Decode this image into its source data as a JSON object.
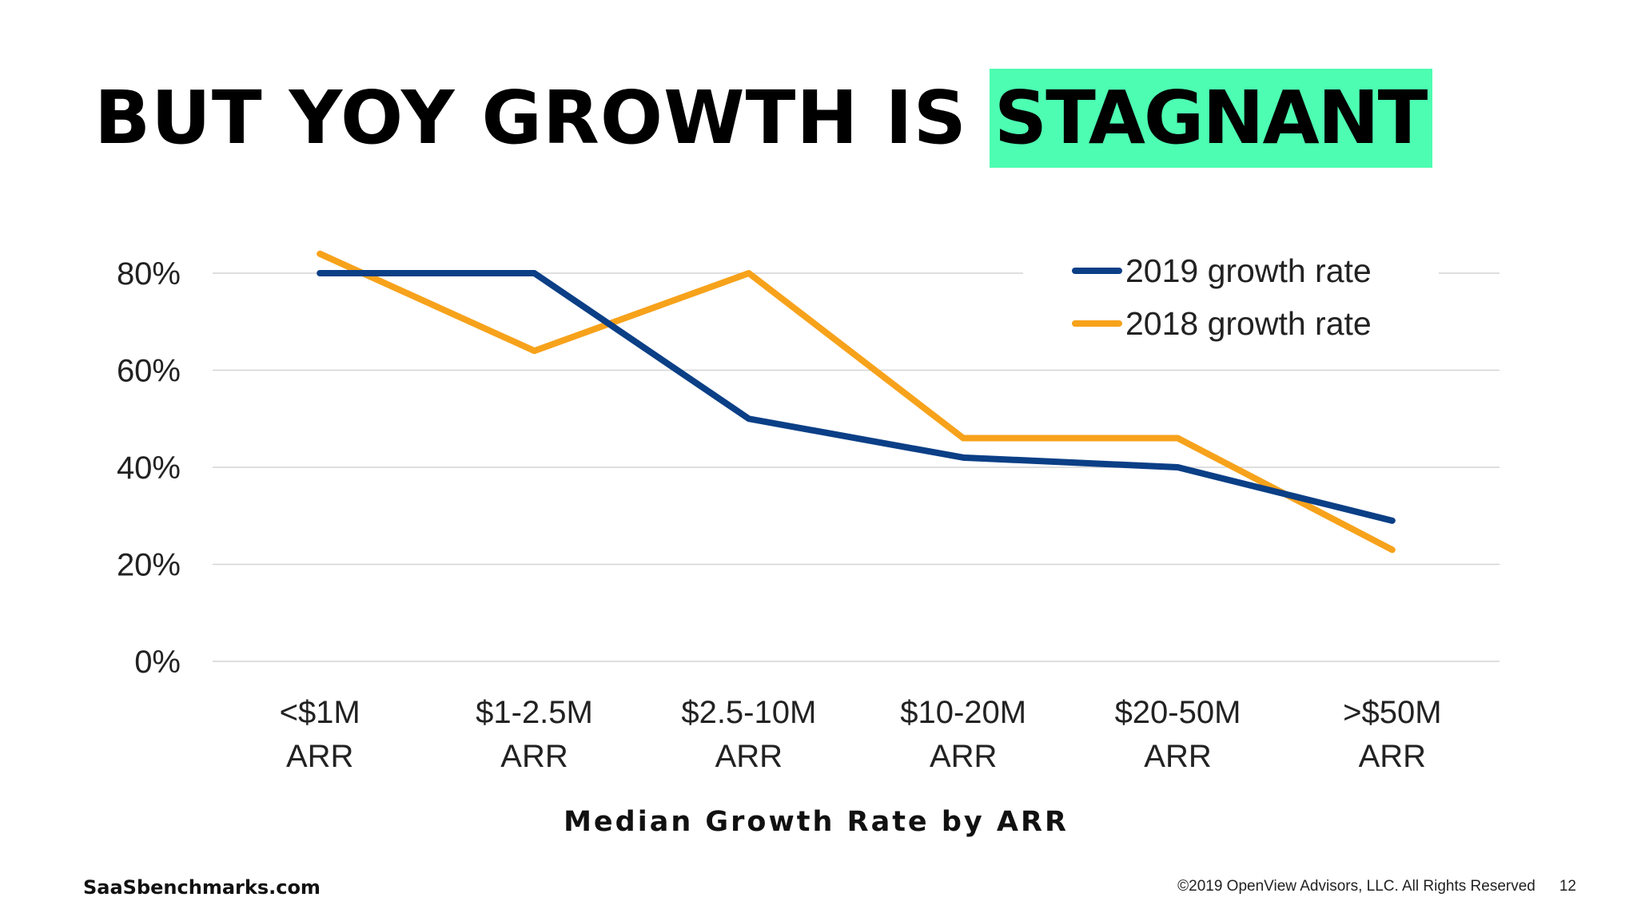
{
  "slide": {
    "title_main": "BUT YOY GROWTH IS",
    "title_highlight": "STAGNANT",
    "highlight_color": "#4dfdb1",
    "footer_site": "SaaSbenchmarks.com",
    "footer_copyright": "©2019 OpenView Advisors, LLC. All Rights Reserved",
    "page_number": "12"
  },
  "chart_data": {
    "type": "line",
    "categories": [
      [
        "<$1M",
        "ARR"
      ],
      [
        "$1-2.5M",
        "ARR"
      ],
      [
        "$2.5-10M",
        "ARR"
      ],
      [
        "$10-20M",
        "ARR"
      ],
      [
        "$20-50M",
        "ARR"
      ],
      [
        ">$50M",
        "ARR"
      ]
    ],
    "series": [
      {
        "name": "2019 growth rate",
        "color": "#0b3f86",
        "values": [
          80,
          80,
          50,
          42,
          40,
          29
        ]
      },
      {
        "name": "2018 growth rate",
        "color": "#f7a21b",
        "values": [
          84,
          64,
          80,
          46,
          46,
          23
        ]
      }
    ],
    "y_ticks": [
      "0%",
      "20%",
      "40%",
      "60%",
      "80%"
    ],
    "y_tick_values": [
      0,
      20,
      40,
      60,
      80
    ],
    "ylim": [
      0,
      80
    ],
    "xlabel": "Median Growth Rate by ARR",
    "ylabel": "",
    "grid": true,
    "legend_position": "top-right"
  }
}
